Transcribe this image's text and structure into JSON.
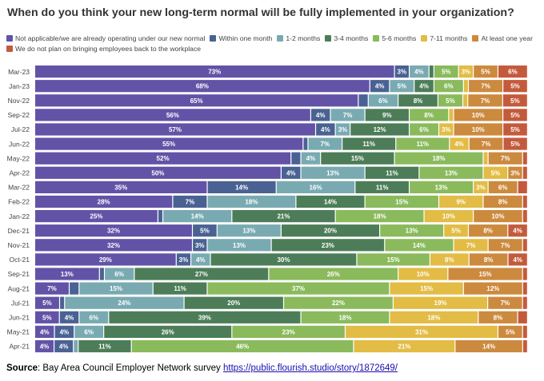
{
  "title": "When do you think your new long-term normal will be fully implemented in your organization?",
  "source": {
    "label": "Source",
    "text": ": Bay Area Council Employer Network survey ",
    "link": "https://public.flourish.studio/story/1872649/"
  },
  "chart_data": {
    "type": "bar",
    "orientation": "horizontal",
    "stacked": true,
    "xlim": [
      0,
      100
    ],
    "legend_position": "top",
    "categories": [
      "Mar-23",
      "Jan-23",
      "Nov-22",
      "Sep-22",
      "Jul-22",
      "Jun-22",
      "May-22",
      "Apr-22",
      "Mar-22",
      "Feb-22",
      "Jan-22",
      "Dec-21",
      "Nov-21",
      "Oct-21",
      "Sep-21",
      "Aug-21",
      "Jul-21",
      "Jun-21",
      "May-21",
      "Apr-21"
    ],
    "series": [
      {
        "name": "Not applicable/we are already operating under our new normal",
        "color": "#6253a7",
        "values": [
          73,
          68,
          65,
          56,
          57,
          55,
          52,
          50,
          35,
          28,
          25,
          32,
          32,
          29,
          13,
          7,
          5,
          5,
          4,
          4
        ]
      },
      {
        "name": "Within one month",
        "color": "#4a6293",
        "values": [
          3,
          4,
          2,
          4,
          4,
          1,
          2,
          4,
          14,
          7,
          1,
          5,
          3,
          3,
          1,
          2,
          1,
          4,
          4,
          4
        ]
      },
      {
        "name": "1-2 months",
        "color": "#79aab2",
        "values": [
          4,
          5,
          6,
          7,
          3,
          7,
          4,
          13,
          16,
          18,
          14,
          13,
          13,
          4,
          6,
          15,
          24,
          6,
          6,
          1
        ]
      },
      {
        "name": "3-4 months",
        "color": "#4c7d58",
        "values": [
          1,
          4,
          8,
          9,
          12,
          11,
          15,
          11,
          11,
          14,
          21,
          20,
          23,
          30,
          27,
          11,
          20,
          39,
          26,
          11
        ]
      },
      {
        "name": "5-6 months",
        "color": "#8aba5c",
        "values": [
          5,
          6,
          5,
          8,
          6,
          11,
          18,
          13,
          13,
          15,
          18,
          13,
          14,
          15,
          26,
          37,
          22,
          18,
          23,
          46
        ]
      },
      {
        "name": "7-11 months",
        "color": "#e2bc45",
        "values": [
          3,
          1,
          1,
          1,
          3,
          4,
          1,
          5,
          3,
          9,
          10,
          5,
          7,
          8,
          10,
          15,
          19,
          18,
          31,
          21
        ]
      },
      {
        "name": "At least one year",
        "color": "#cc8a3e",
        "values": [
          5,
          7,
          7,
          10,
          10,
          7,
          7,
          3,
          6,
          8,
          10,
          8,
          7,
          8,
          15,
          12,
          7,
          8,
          5,
          14
        ]
      },
      {
        "name": "We do not plan on bringing employees back to the workplace",
        "color": "#c45a3d",
        "values": [
          6,
          5,
          5,
          5,
          5,
          5,
          1,
          1,
          2,
          1,
          1,
          4,
          1,
          4,
          1,
          1,
          1,
          2,
          1,
          1
        ]
      }
    ],
    "label_threshold": 3
  }
}
